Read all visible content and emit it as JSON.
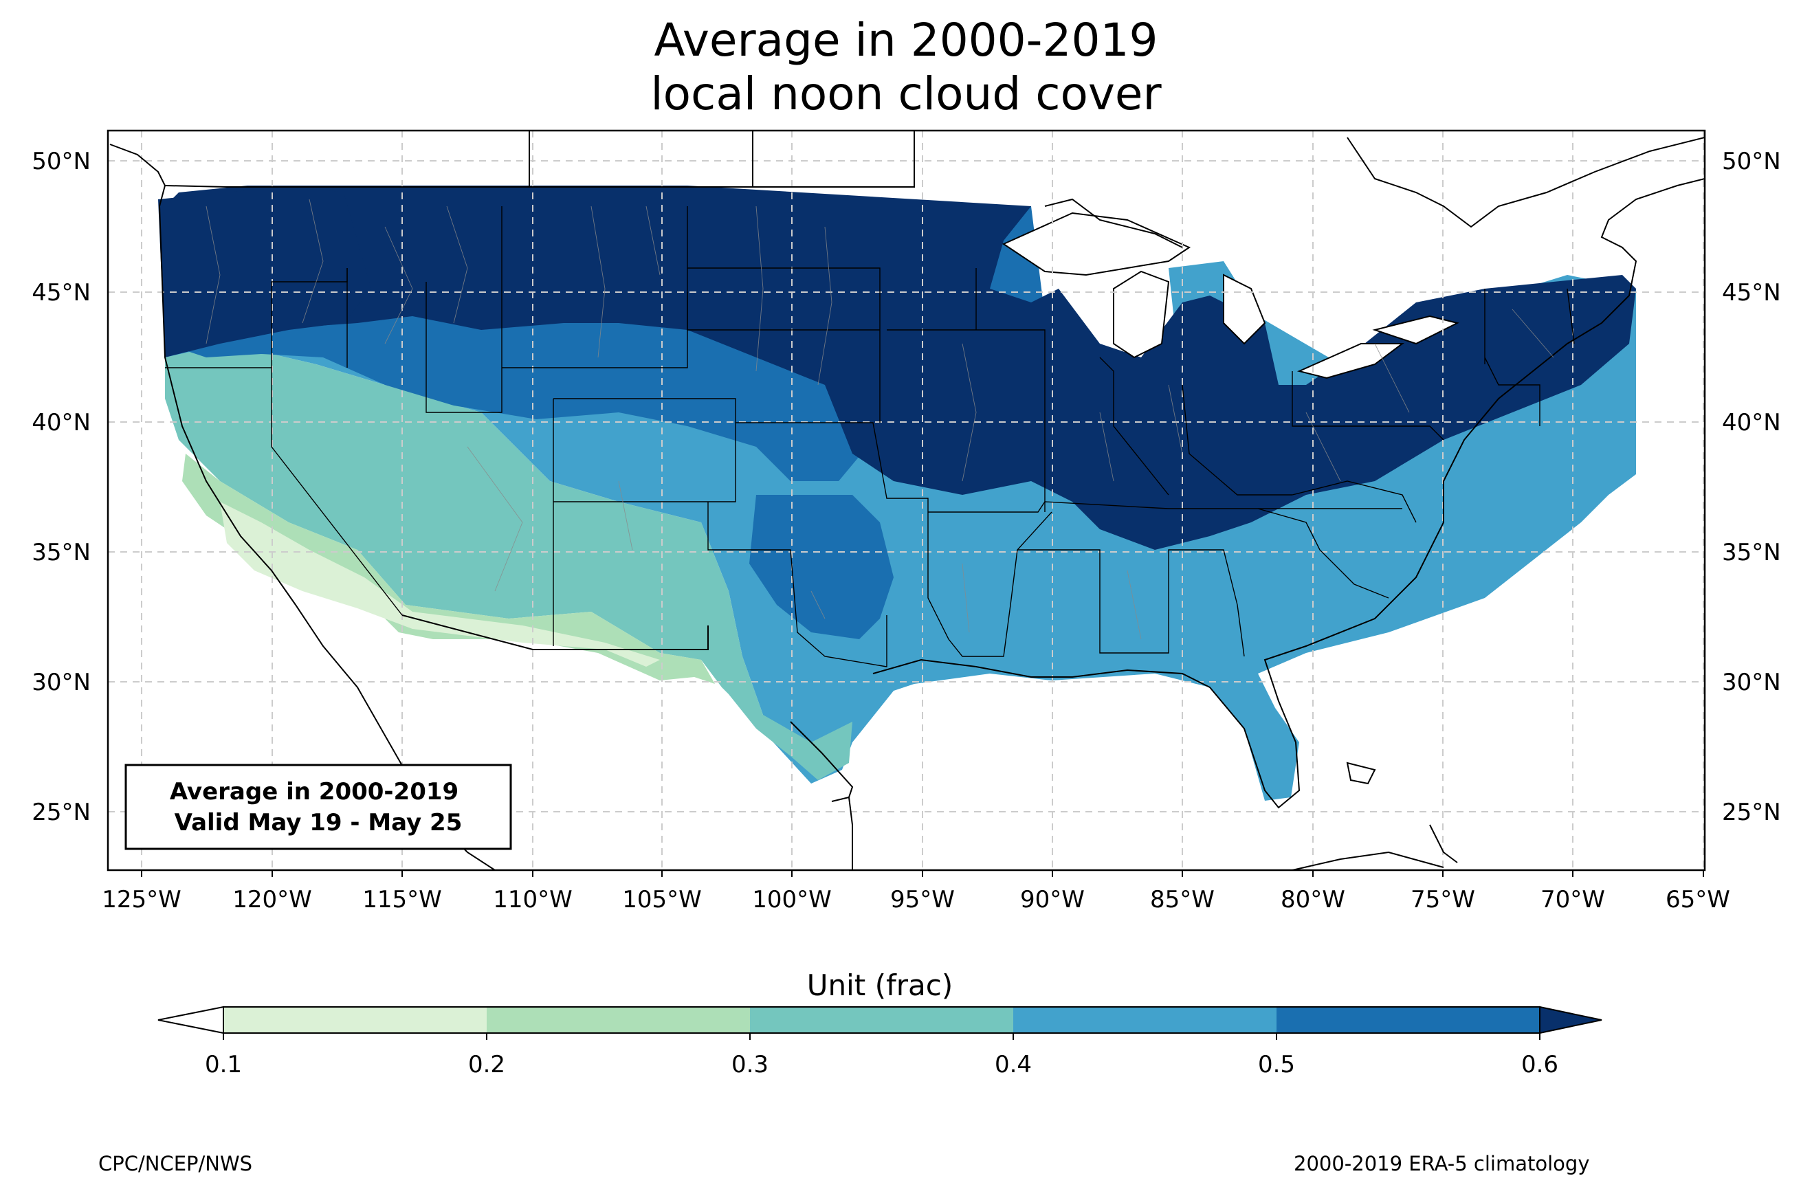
{
  "title": {
    "line1": "Average in 2000-2019",
    "line2": "local noon cloud cover"
  },
  "info_box": {
    "line1": "Average in 2000-2019",
    "line2": "Valid May 19 - May 25"
  },
  "lon_labels": [
    "125°W",
    "120°W",
    "115°W",
    "110°W",
    "105°W",
    "100°W",
    "95°W",
    "90°W",
    "85°W",
    "80°W",
    "75°W",
    "70°W",
    "65°W"
  ],
  "lat_labels": [
    "25°N",
    "30°N",
    "35°N",
    "40°N",
    "45°N",
    "50°N"
  ],
  "colorbar": {
    "title": "Unit (frac)",
    "ticks": [
      "0.1",
      "0.2",
      "0.3",
      "0.4",
      "0.5",
      "0.6"
    ],
    "colors": [
      "#dbf1d6",
      "#addfb7",
      "#74c6be",
      "#42a2cc",
      "#1a6fb0",
      "#08306b"
    ],
    "under_color": "#ffffff",
    "over_color": "#08306b"
  },
  "footer": {
    "left": "CPC/NCEP/NWS",
    "right": "2000-2019 ERA-5 climatology"
  }
}
